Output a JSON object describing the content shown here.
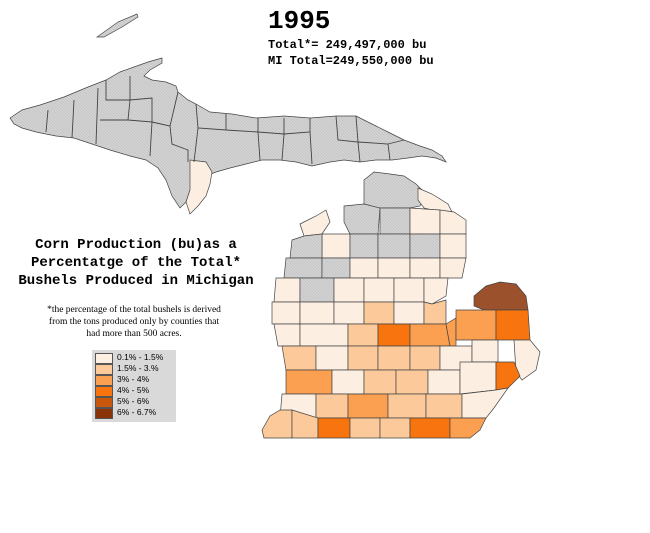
{
  "header": {
    "year": "1995",
    "total_label": "Total*= 249,497,000 bu",
    "mi_total_label": "MI Total=249,550,000 bu"
  },
  "title": {
    "line1": "Corn Production (bu)as a",
    "line2": "Percentatge of the Total*",
    "line3": "Bushels Produced in Michigan"
  },
  "note": {
    "line1": "*the percentage of the total bushels is derived",
    "line2": "from the tons produced only by counties that",
    "line3": "had more than 500 acres."
  },
  "legend": [
    {
      "label": "0.1% - 1.5%",
      "color": "#fdeee2"
    },
    {
      "label": "1.5% - 3.%",
      "color": "#fcc99b"
    },
    {
      "label": "3% - 4%",
      "color": "#fb9f50"
    },
    {
      "label": "4% - 5%",
      "color": "#f7740f"
    },
    {
      "label": "5% - 6%",
      "color": "#c9560d"
    },
    {
      "label": "6% - 6.7%",
      "color": "#8b3308"
    }
  ],
  "colors": {
    "no_data": "#cfcfcf",
    "background": "#ffffff"
  }
}
